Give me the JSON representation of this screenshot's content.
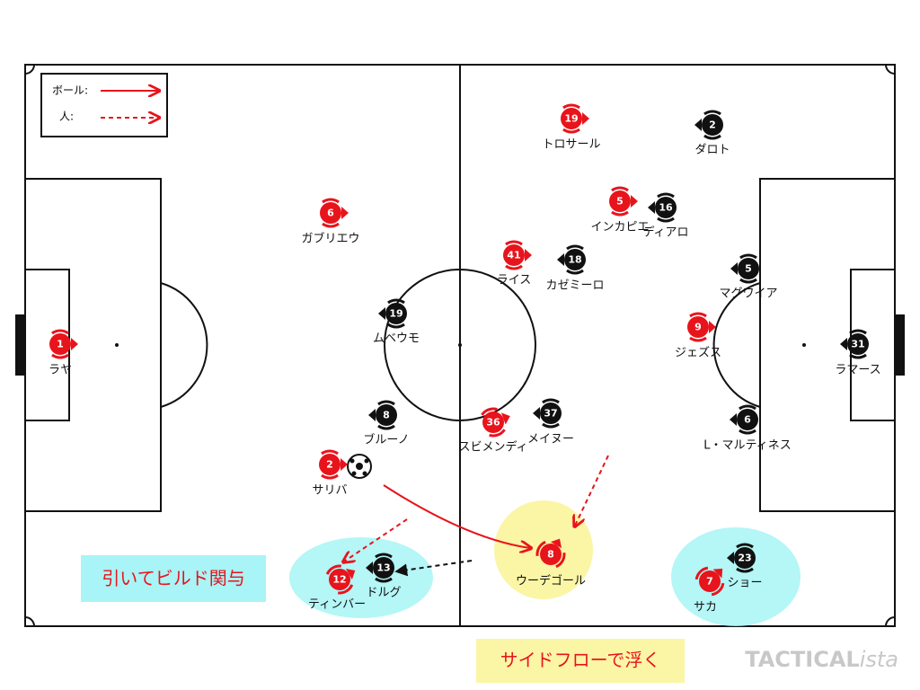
{
  "legend": {
    "ball": "ボール:",
    "person": "人:"
  },
  "players": [
    {
      "number": 1,
      "name": "ラヤ",
      "color": "#e8141c"
    },
    {
      "number": 6,
      "name": "ガブリエウ",
      "color": "#e8141c"
    },
    {
      "number": 2,
      "name": "サリバ",
      "color": "#e8141c"
    },
    {
      "number": 12,
      "name": "ティンバー",
      "color": "#e8141c"
    },
    {
      "number": 19,
      "name": "トロサール",
      "color": "#e8141c"
    },
    {
      "number": 5,
      "name": "インカピエ",
      "color": "#e8141c"
    },
    {
      "number": 41,
      "name": "ライス",
      "color": "#e8141c"
    },
    {
      "number": 36,
      "name": "スビメンディ",
      "color": "#e8141c"
    },
    {
      "number": 9,
      "name": "ジェズス",
      "color": "#e8141c"
    },
    {
      "number": 8,
      "name": "ウーデゴール",
      "color": "#e8141c"
    },
    {
      "number": 7,
      "name": "サカ",
      "color": "#e8141c"
    },
    {
      "number": 2,
      "name": "ダロト",
      "color": "#111111"
    },
    {
      "number": 16,
      "name": "ディアロ",
      "color": "#111111"
    },
    {
      "number": 18,
      "name": "カゼミーロ",
      "color": "#111111"
    },
    {
      "number": 5,
      "name": "マグワイア",
      "color": "#111111"
    },
    {
      "number": 19,
      "name": "ムベウモ",
      "color": "#111111"
    },
    {
      "number": 31,
      "name": "ラマース",
      "color": "#111111"
    },
    {
      "number": 8,
      "name": "ブルーノ",
      "color": "#111111"
    },
    {
      "number": 37,
      "name": "メイヌー",
      "color": "#111111"
    },
    {
      "number": 6,
      "name": "L・マルティネス",
      "color": "#111111"
    },
    {
      "number": 13,
      "name": "ドルグ",
      "color": "#111111"
    },
    {
      "number": 23,
      "name": "ショー",
      "color": "#111111"
    }
  ],
  "annotations": {
    "build": "引いてビルド関与",
    "float": "サイドフローで浮く"
  },
  "watermark": {
    "main": "TACTICAL",
    "suffix": "ista"
  }
}
